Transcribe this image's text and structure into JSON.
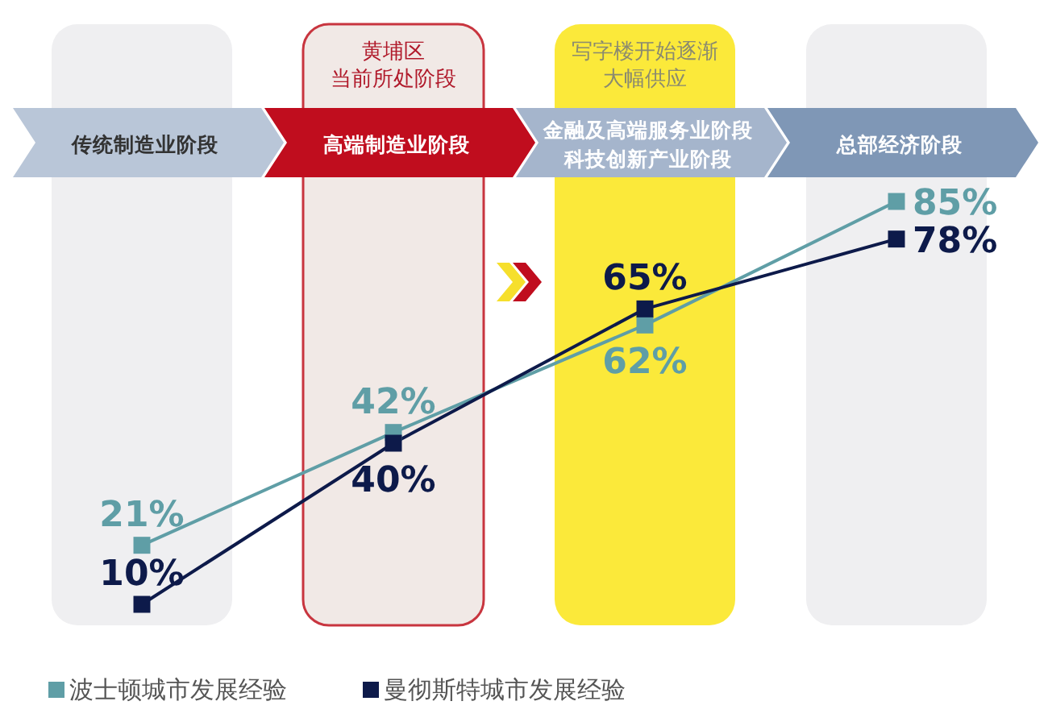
{
  "chart_data": {
    "type": "line",
    "categories": [
      "传统制造业阶段",
      "高端制造业阶段",
      "金融及高端服务业阶段科技创新产业阶段",
      "总部经济阶段"
    ],
    "series": [
      {
        "name": "波士顿城市发展经验",
        "color": "#5f9ea6",
        "values": [
          21,
          42,
          62,
          85
        ],
        "value_labels": [
          "21%",
          "42%",
          "62%",
          "85%"
        ]
      },
      {
        "name": "曼彻斯特城市发展经验",
        "color": "#0d1a4a",
        "values": [
          10,
          40,
          65,
          78
        ],
        "value_labels": [
          "10%",
          "40%",
          "65%",
          "78%"
        ]
      }
    ],
    "marker": "square",
    "legend": "bottom left",
    "bands": [
      {
        "axis": "x",
        "from": "传统制造业阶段",
        "to": "传统制造业阶段",
        "color": "#efeff1"
      },
      {
        "axis": "x",
        "from": "高端制造业阶段",
        "to": "高端制造业阶段",
        "color": "#f1e9e6"
      },
      {
        "axis": "x",
        "from": "金融及高端服务业阶段科技创新产业阶段",
        "to": "金融及高端服务业阶段科技创新产业阶段",
        "color": "#fbe93a"
      },
      {
        "axis": "x",
        "from": "总部经济阶段",
        "to": "总部经济阶段",
        "color": "#efeff1"
      }
    ],
    "annotations": [
      "黄埔区",
      "当前所处阶段",
      "写字楼开始逐渐",
      "大幅供应"
    ]
  }
}
